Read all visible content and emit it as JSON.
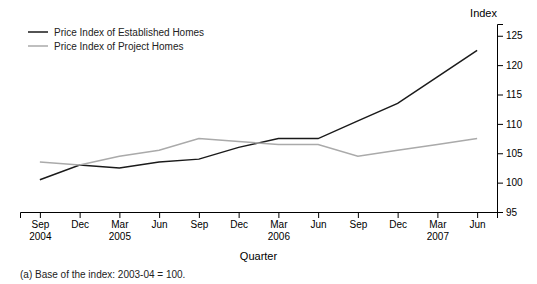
{
  "chart_data": {
    "type": "line",
    "xlabel": "Quarter",
    "ylabel": "Index",
    "footnote": "(a) Base of the index: 2003-04 = 100.",
    "categories": [
      "Sep\n2004",
      "Dec",
      "Mar\n2005",
      "Jun",
      "Sep",
      "Dec",
      "Mar\n2006",
      "Jun",
      "Sep",
      "Dec",
      "Mar\n2007",
      "Jun"
    ],
    "series": [
      {
        "name": "Price Index of Established Homes",
        "color": "#1a1a1a",
        "values": [
          100.5,
          103.0,
          102.5,
          103.5,
          104.0,
          106.0,
          107.5,
          107.5,
          110.5,
          113.5,
          118.0,
          122.5
        ]
      },
      {
        "name": "Price Index of Project Homes",
        "color": "#aaaaaa",
        "values": [
          103.5,
          103.0,
          104.5,
          105.5,
          107.5,
          107.0,
          106.5,
          106.5,
          104.5,
          105.5,
          106.5,
          107.5
        ]
      }
    ],
    "ylim": [
      95,
      127
    ],
    "yticks": [
      95,
      100,
      105,
      110,
      115,
      120,
      125
    ],
    "grid": false,
    "legend": "upper left"
  }
}
